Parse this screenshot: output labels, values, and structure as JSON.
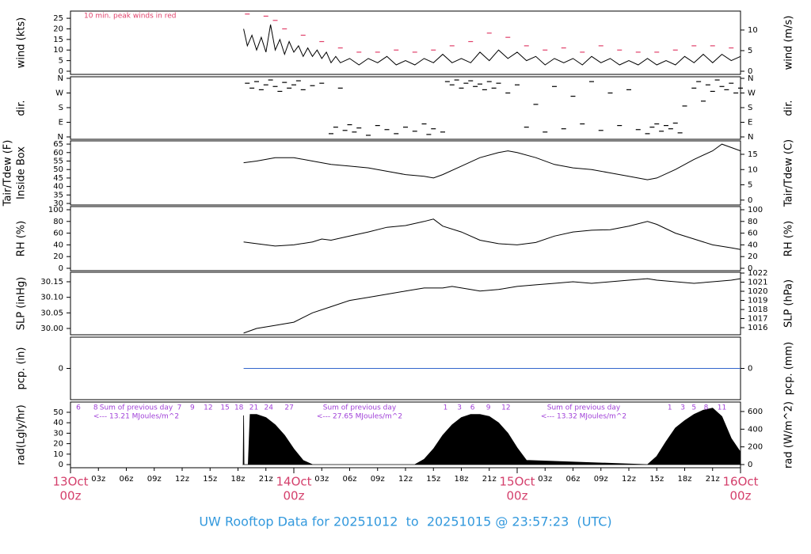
{
  "chart_data": [
    {
      "type": "line",
      "ylabel": "wind (kts)",
      "y2label": "wind (m/s)",
      "ylim": [
        -1.5,
        28.4
      ],
      "yticks": [
        0,
        5,
        10,
        15,
        20,
        25
      ],
      "y2lim": [
        -0.77,
        14.6
      ],
      "y2ticks": [
        0,
        5,
        10
      ],
      "annotation": "10 min. peak winds in red",
      "series": [
        {
          "marker": "line",
          "color": "#000000",
          "x": [
            18.6,
            19,
            19.5,
            20,
            20.5,
            21,
            21.5,
            22,
            22.5,
            23,
            23.5,
            24,
            24.5,
            25,
            25.5,
            26,
            26.5,
            27,
            27.5,
            28,
            28.5,
            29,
            30,
            31,
            32,
            33,
            34,
            35,
            36,
            37,
            38,
            39,
            40,
            41,
            42,
            43,
            44,
            45,
            46,
            47,
            48,
            49,
            50,
            51,
            52,
            53,
            54,
            55,
            56,
            57,
            58,
            59,
            60,
            61,
            62,
            63,
            64,
            65,
            66,
            67,
            68,
            69,
            70,
            71,
            72
          ],
          "values": [
            20,
            12,
            17,
            10,
            16,
            9,
            22,
            10,
            15,
            8,
            14,
            9,
            12,
            7,
            11,
            7,
            10,
            6,
            9,
            4,
            7,
            4,
            6,
            3,
            6,
            4,
            7,
            3,
            5,
            3,
            6,
            4,
            8,
            4,
            6,
            4,
            9,
            5,
            10,
            6,
            9,
            5,
            7,
            3,
            6,
            4,
            6,
            3,
            7,
            4,
            6,
            3,
            5,
            3,
            6,
            3,
            5,
            3,
            7,
            4,
            8,
            4,
            8,
            5,
            7
          ]
        },
        {
          "marker": "dash",
          "color": "#e0406a",
          "x": [
            19,
            21,
            22,
            23,
            25,
            27,
            29,
            31,
            33,
            35,
            37,
            39,
            41,
            43,
            45,
            47,
            49,
            51,
            53,
            55,
            57,
            59,
            61,
            63,
            65,
            67,
            69,
            71
          ],
          "values": [
            27,
            26,
            24,
            20,
            17,
            14,
            11,
            9,
            9,
            10,
            9,
            10,
            12,
            14,
            18,
            16,
            12,
            10,
            11,
            9,
            12,
            10,
            9,
            9,
            10,
            12,
            12,
            11
          ]
        }
      ]
    },
    {
      "type": "scatter",
      "ylabel": "dir.",
      "y2label": "dir.",
      "ylim": [
        -14.6,
        369.7
      ],
      "yticks": [
        {
          "value": 0,
          "label": "N"
        },
        {
          "value": 90,
          "label": "E"
        },
        {
          "value": 180,
          "label": "S"
        },
        {
          "value": 270,
          "label": "W"
        },
        {
          "value": 360,
          "label": "N"
        }
      ],
      "y2lim": [
        -14.6,
        369.7
      ],
      "y2ticks": [
        {
          "value": 0,
          "label": "N"
        },
        {
          "value": 90,
          "label": "E"
        },
        {
          "value": 180,
          "label": "S"
        },
        {
          "value": 270,
          "label": "W"
        },
        {
          "value": 360,
          "label": "N"
        }
      ],
      "series": [
        {
          "marker": "dash",
          "color": "#000000",
          "x": [
            19,
            19.5,
            20,
            20.5,
            21,
            21.5,
            22,
            22.5,
            23,
            23.5,
            24,
            24.5,
            25,
            26,
            27,
            28,
            28.5,
            29,
            29.5,
            30,
            30.5,
            31,
            32,
            33,
            34,
            35,
            36,
            37,
            38,
            38.5,
            39,
            40,
            40.5,
            41,
            41.5,
            42,
            42.5,
            43,
            43.5,
            44,
            44.5,
            45,
            45.5,
            46,
            47,
            48,
            49,
            50,
            51,
            52,
            53,
            54,
            55,
            56,
            57,
            58,
            59,
            60,
            61,
            62,
            62.5,
            63,
            63.5,
            64,
            64.5,
            65,
            65.5,
            66,
            67,
            67.5,
            68,
            68.5,
            69,
            69.5,
            70,
            70.5,
            71,
            71.5,
            72
          ],
          "values": [
            330,
            300,
            340,
            290,
            320,
            350,
            310,
            280,
            335,
            300,
            320,
            345,
            290,
            315,
            330,
            20,
            60,
            300,
            40,
            75,
            30,
            55,
            10,
            70,
            45,
            20,
            60,
            35,
            80,
            15,
            50,
            30,
            340,
            320,
            350,
            300,
            330,
            345,
            310,
            325,
            290,
            340,
            300,
            330,
            270,
            320,
            60,
            200,
            30,
            310,
            50,
            250,
            80,
            340,
            40,
            270,
            70,
            290,
            45,
            20,
            60,
            80,
            35,
            70,
            50,
            85,
            25,
            190,
            300,
            340,
            220,
            320,
            280,
            350,
            310,
            290,
            330,
            270,
            300
          ]
        }
      ]
    },
    {
      "type": "line",
      "ylabel": [
        "Tair/Tdew (F)",
        "Inside Box"
      ],
      "y2label": "Tair/Tdew (C)",
      "ylim": [
        29.1,
        66.9
      ],
      "yticks": [
        30,
        35,
        40,
        45,
        50,
        55,
        60,
        65
      ],
      "y2lim": [
        -1.6,
        19.4
      ],
      "y2ticks": [
        0,
        5,
        10,
        15
      ],
      "series": [
        {
          "marker": "line",
          "color": "#000000",
          "x": [
            18.6,
            20,
            22,
            24,
            26,
            28,
            30,
            32,
            34,
            36,
            38,
            39,
            40,
            42,
            44,
            46,
            47,
            48,
            50,
            52,
            54,
            56,
            58,
            60,
            62,
            63,
            65,
            67,
            69,
            70,
            71,
            72
          ],
          "values": [
            54,
            55,
            57,
            57,
            55,
            53,
            52,
            51,
            49,
            47,
            46,
            45,
            47,
            52,
            57,
            60,
            61,
            60,
            57,
            53,
            51,
            50,
            48,
            46,
            44,
            45,
            50,
            56,
            61,
            65,
            63,
            61
          ]
        }
      ]
    },
    {
      "type": "line",
      "ylabel": "RH (%)",
      "y2label": "RH (%)",
      "ylim": [
        -4.05,
        105.4
      ],
      "yticks": [
        0,
        20,
        40,
        60,
        80,
        100
      ],
      "y2lim": [
        -4.05,
        105.4
      ],
      "y2ticks": [
        0,
        20,
        40,
        60,
        80,
        100
      ],
      "series": [
        {
          "marker": "line",
          "color": "#000000",
          "x": [
            18.6,
            20,
            22,
            24,
            26,
            27,
            28,
            30,
            32,
            34,
            36,
            38,
            39,
            40,
            42,
            44,
            46,
            48,
            50,
            52,
            54,
            56,
            58,
            60,
            62,
            63,
            65,
            67,
            69,
            71,
            72
          ],
          "values": [
            45,
            42,
            38,
            40,
            45,
            50,
            48,
            55,
            62,
            70,
            73,
            80,
            84,
            72,
            62,
            48,
            42,
            40,
            44,
            55,
            62,
            65,
            66,
            72,
            80,
            75,
            60,
            50,
            40,
            35,
            32
          ]
        }
      ]
    },
    {
      "type": "line",
      "ylabel": "SLP (inHg)",
      "y2label": "SLP (hPa)",
      "ylim": [
        29.9797,
        30.1805
      ],
      "yticks": [
        {
          "value": 30,
          "label": "30.00"
        },
        30.05,
        {
          "value": 30.1,
          "label": "30.10"
        },
        30.15
      ],
      "y2lim": [
        1015.22,
        1022.09
      ],
      "y2ticks": [
        1016,
        1017,
        1018,
        1019,
        1020,
        1021,
        1022
      ],
      "series": [
        {
          "marker": "line",
          "color": "#000000",
          "x": [
            18.6,
            20,
            22,
            24,
            26,
            28,
            30,
            32,
            34,
            36,
            38,
            40,
            41,
            43,
            44,
            46,
            48,
            50,
            52,
            54,
            56,
            58,
            60,
            62,
            63,
            65,
            67,
            69,
            71,
            72
          ],
          "values": [
            29.985,
            30,
            30.01,
            30.02,
            30.05,
            30.07,
            30.09,
            30.1,
            30.11,
            30.12,
            30.13,
            30.13,
            30.135,
            30.125,
            30.12,
            30.125,
            30.135,
            30.14,
            30.145,
            30.15,
            30.145,
            30.15,
            30.155,
            30.16,
            30.155,
            30.15,
            30.145,
            30.15,
            30.155,
            30.16
          ]
        }
      ]
    },
    {
      "type": "line",
      "ylabel": "pcp. (in)",
      "y2label": "pcp. (mm)",
      "ylim": [
        -1,
        1
      ],
      "yticks": [
        0
      ],
      "y2lim": [
        -1,
        1
      ],
      "y2ticks": [
        0
      ],
      "series": [
        {
          "marker": "line",
          "color": "#3366cc",
          "x": [
            18.6,
            72
          ],
          "values": [
            0,
            0
          ]
        }
      ]
    },
    {
      "type": "area",
      "ylabel": "rad(Lgly/hr)",
      "y2label": "rad (W/m^2)",
      "ylim": [
        -3,
        59.8
      ],
      "yticks": [
        0,
        10,
        20,
        30,
        40,
        50
      ],
      "y2lim": [
        -36,
        707
      ],
      "y2ticks": [
        0,
        200,
        400,
        600
      ],
      "series": [
        {
          "color": "#000000",
          "x": [
            18.55,
            18.6,
            18.65,
            19.1,
            19.3,
            20,
            21,
            22,
            23,
            24,
            25,
            26,
            37,
            38,
            39,
            40,
            41,
            42,
            43,
            44,
            45,
            46,
            47,
            48,
            49,
            62,
            63,
            64,
            65,
            66,
            67,
            68,
            69,
            70,
            71,
            72
          ],
          "values": [
            0,
            47,
            0,
            0,
            48,
            48,
            45,
            38,
            28,
            15,
            4,
            0,
            0,
            5,
            15,
            28,
            38,
            45,
            48,
            48,
            46,
            40,
            30,
            16,
            4,
            0,
            8,
            22,
            35,
            42,
            48,
            52,
            54,
            46,
            25,
            12
          ]
        }
      ],
      "hourly_labels": [
        {
          "value": 0.85,
          "label": "6"
        },
        {
          "value": 2.7,
          "label": "8"
        },
        {
          "value": 11.7,
          "label": "7"
        },
        {
          "value": 13.1,
          "label": "9"
        },
        {
          "value": 14.8,
          "label": "12"
        },
        {
          "value": 16.6,
          "label": "15"
        },
        {
          "value": 18.1,
          "label": "18"
        },
        {
          "value": 19.7,
          "label": "21"
        },
        {
          "value": 21.3,
          "label": "24"
        },
        {
          "value": 23.5,
          "label": "27"
        },
        {
          "value": 40.3,
          "label": "1"
        },
        {
          "value": 41.8,
          "label": "3"
        },
        {
          "value": 43.2,
          "label": "6"
        },
        {
          "value": 44.9,
          "label": "9"
        },
        {
          "value": 46.8,
          "label": "12"
        },
        {
          "value": 64.4,
          "label": "1"
        },
        {
          "value": 65.8,
          "label": "3"
        },
        {
          "value": 67.0,
          "label": "5"
        },
        {
          "value": 68.3,
          "label": "8"
        },
        {
          "value": 70.0,
          "label": "11"
        }
      ],
      "day_sums": [
        {
          "heading": "Sum of previous day",
          "total": "<--- 13.21 MJoules/m^2"
        },
        {
          "heading": "Sum of previous day",
          "total": "<--- 27.65 MJoules/m^2"
        },
        {
          "heading": "Sum of previous day",
          "total": "<--- 13.32 MJoules/m^2"
        }
      ],
      "xlim": [
        0,
        72
      ],
      "xticks": [
        {
          "value": 0,
          "label": [
            "13Oct",
            "00z"
          ]
        },
        {
          "value": 3,
          "label": "03z"
        },
        {
          "value": 6,
          "label": "06z"
        },
        {
          "value": 9,
          "label": "09z"
        },
        {
          "value": 12,
          "label": "12z"
        },
        {
          "value": 15,
          "label": "15z"
        },
        {
          "value": 18,
          "label": "18z"
        },
        {
          "value": 21,
          "label": "21z"
        },
        {
          "value": 24,
          "label": [
            "14Oct",
            "00z"
          ]
        },
        {
          "value": 27,
          "label": "03z"
        },
        {
          "value": 30,
          "label": "06z"
        },
        {
          "value": 33,
          "label": "09z"
        },
        {
          "value": 36,
          "label": "12z"
        },
        {
          "value": 39,
          "label": "15z"
        },
        {
          "value": 42,
          "label": "18z"
        },
        {
          "value": 45,
          "label": "21z"
        },
        {
          "value": 48,
          "label": [
            "15Oct",
            "00z"
          ]
        },
        {
          "value": 51,
          "label": "03z"
        },
        {
          "value": 54,
          "label": "06z"
        },
        {
          "value": 57,
          "label": "09z"
        },
        {
          "value": 60,
          "label": "12z"
        },
        {
          "value": 63,
          "label": "15z"
        },
        {
          "value": 66,
          "label": "18z"
        },
        {
          "value": 69,
          "label": "21z"
        },
        {
          "value": 72,
          "label": [
            "16Oct",
            "00z"
          ]
        }
      ],
      "title": "UW Rooftop Data for 20251012  to  20251015 @ 23:57:23  (UTC)"
    }
  ]
}
